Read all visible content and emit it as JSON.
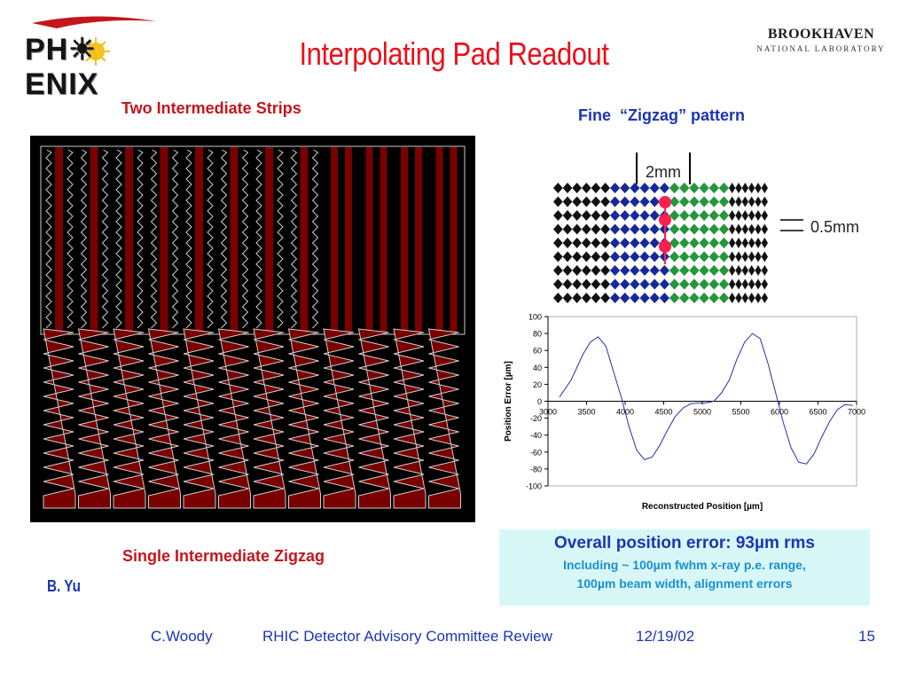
{
  "header": {
    "logo_left_text": "PH☀ENIX",
    "title": "Interpolating Pad Readout",
    "logo_right_line1": "BROOKHAVEN",
    "logo_right_line2": "NATIONAL LABORATORY"
  },
  "left_panel": {
    "top_label": "Two Intermediate Strips",
    "bottom_label": "Single Intermediate Zigzag",
    "credit": "B. Yu"
  },
  "right_panel": {
    "pattern_label": "Fine  “Zigzag” pattern",
    "dim_2mm": "2mm",
    "dim_05mm": "0.5mm"
  },
  "chart_data": {
    "type": "line",
    "title": "",
    "xlabel": "Reconstructed Position [µm]",
    "ylabel": "Position Error [µm]",
    "xlim": [
      3000,
      7000
    ],
    "ylim": [
      -100,
      100
    ],
    "x_ticks": [
      3000,
      3500,
      4000,
      4500,
      5000,
      5500,
      6000,
      6500,
      7000
    ],
    "y_ticks": [
      100,
      80,
      60,
      40,
      20,
      0,
      -20,
      -40,
      -60,
      -80,
      -100
    ],
    "grid": false,
    "series": [
      {
        "color": "#2233aa",
        "x": [
          3150,
          3300,
          3450,
          3550,
          3650,
          3750,
          3850,
          3950,
          4050,
          4150,
          4250,
          4350,
          4450,
          4550,
          4650,
          4750,
          4850,
          4950,
          5050,
          5150,
          5250,
          5350,
          5450,
          5550,
          5650,
          5750,
          5850,
          5950,
          6050,
          6150,
          6250,
          6350,
          6450,
          6550,
          6650,
          6750,
          6850,
          6950
        ],
        "values": [
          5,
          25,
          55,
          70,
          76,
          65,
          35,
          5,
          -30,
          -58,
          -69,
          -66,
          -52,
          -34,
          -18,
          -8,
          -3,
          -2,
          -2,
          0,
          10,
          25,
          50,
          70,
          80,
          74,
          45,
          10,
          -25,
          -55,
          -72,
          -74,
          -62,
          -42,
          -24,
          -10,
          -4,
          -5
        ]
      }
    ]
  },
  "summary": {
    "main": "Overall position error: 93µm rms",
    "sub1": "Including ~ 100µm fwhm x-ray p.e. range,",
    "sub2": "100µm beam width, alignment errors"
  },
  "footer": {
    "author": "C.Woody",
    "event": "RHIC Detector Advisory Committee Review",
    "date": "12/19/02",
    "page": "15"
  }
}
